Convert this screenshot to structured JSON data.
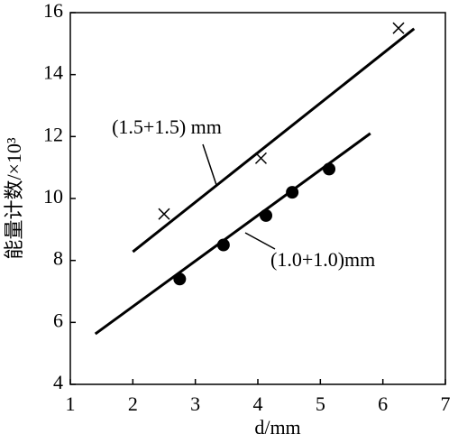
{
  "chart_data": {
    "type": "scatter",
    "x_label": "d/mm",
    "y_label": "能量计数/×10³",
    "xlim": [
      1,
      7
    ],
    "ylim": [
      4,
      16
    ],
    "xticks": [
      1,
      2,
      3,
      4,
      5,
      6,
      7
    ],
    "yticks": [
      4,
      6,
      8,
      10,
      12,
      14,
      16
    ],
    "series": [
      {
        "name": "(1.5+1.5) mm",
        "color": "#000000",
        "marker": "x",
        "x": [
          2.5,
          4.05,
          6.25
        ],
        "values": [
          9.5,
          11.3,
          15.5
        ],
        "fit_x": [
          2.0,
          6.5
        ],
        "fit_values": [
          8.28,
          15.48
        ]
      },
      {
        "name": "(1.0+1.0)mm",
        "color": "#000000",
        "marker": "circle",
        "x": [
          2.75,
          3.45,
          4.13,
          4.55,
          5.14
        ],
        "values": [
          7.4,
          8.5,
          9.45,
          10.2,
          10.95
        ],
        "fit_x": [
          1.4,
          5.8
        ],
        "fit_values": [
          5.63,
          12.1
        ]
      }
    ]
  }
}
